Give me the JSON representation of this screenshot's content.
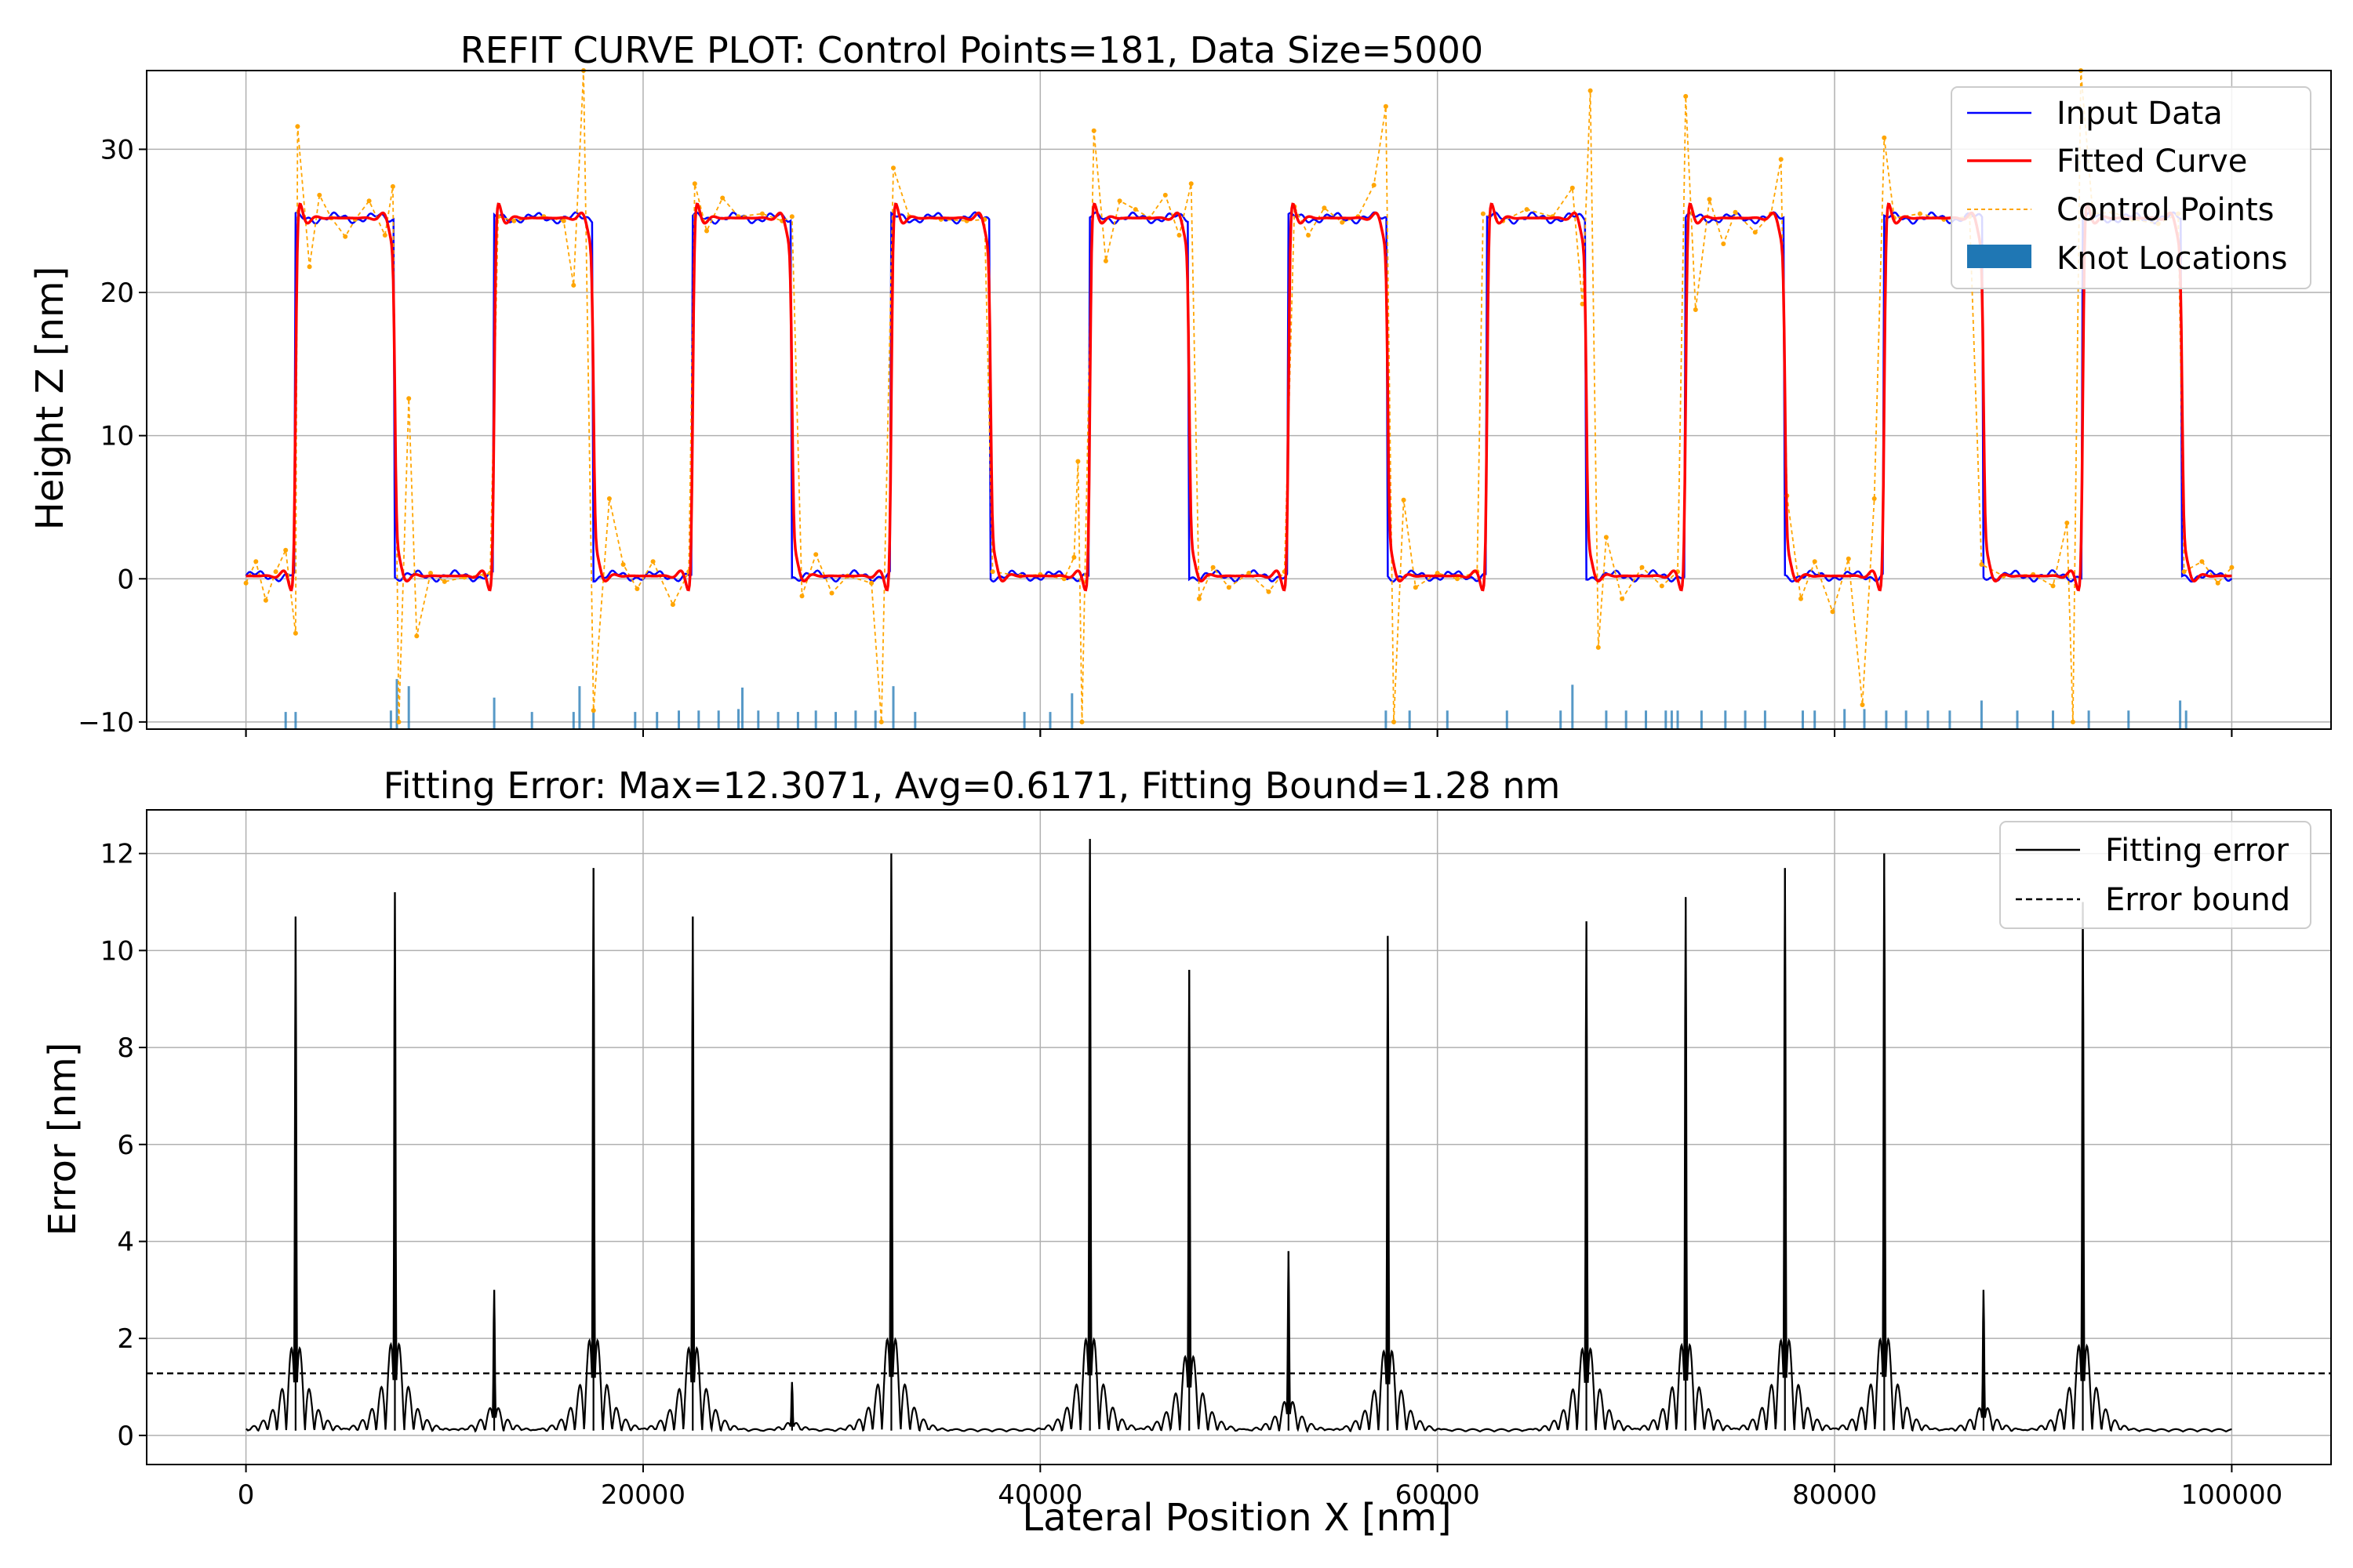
{
  "chart_data": [
    {
      "type": "line",
      "title": "REFIT CURVE PLOT: Control Points=181, Data Size=5000",
      "xlabel": "",
      "ylabel": "Height Z [nm]",
      "xlim": [
        -5000,
        105000
      ],
      "ylim": [
        -10.5,
        35.5
      ],
      "xticks": [
        0,
        20000,
        40000,
        60000,
        80000,
        100000
      ],
      "yticks": [
        -10,
        0,
        10,
        20,
        30
      ],
      "ytick_labels": [
        "−10",
        "0",
        "10",
        "20",
        "30"
      ],
      "grid": true,
      "legend_position": "top-right",
      "colors": {
        "input": "#0000ff",
        "fitted": "#ff0000",
        "control": "#ffa500",
        "knots": "#1f77b4"
      },
      "series": [
        {
          "name": "Input Data",
          "kind": "square-wave",
          "low": 0.2,
          "high": 25.2,
          "rises_at": [
            2500,
            12500,
            22500,
            32500,
            42500,
            52500,
            62500,
            72500,
            82500,
            92500
          ],
          "falls_at": [
            7500,
            17500,
            27500,
            37500,
            47500,
            57500,
            67500,
            77500,
            87500,
            97500
          ],
          "x_range": [
            0,
            100000
          ]
        },
        {
          "name": "Fitted Curve",
          "kind": "smoothed square-wave with ringing",
          "overshoot_points": [
            [
              2800,
              27.6
            ],
            [
              7700,
              -2.5
            ],
            [
              17300,
              26.2
            ],
            [
              17800,
              -2.3
            ],
            [
              32600,
              27.4
            ],
            [
              32000,
              -2.6
            ],
            [
              47700,
              -2.5
            ],
            [
              57400,
              27.2
            ],
            [
              77400,
              27.7
            ],
            [
              82300,
              -2.5
            ],
            [
              92300,
              -2.5
            ]
          ]
        },
        {
          "name": "Control Points",
          "points": [
            [
              0,
              -0.3
            ],
            [
              500,
              1.2
            ],
            [
              1000,
              -1.5
            ],
            [
              1500,
              0.5
            ],
            [
              2000,
              2.0
            ],
            [
              2500,
              -3.8
            ],
            [
              2600,
              31.6
            ],
            [
              3200,
              21.8
            ],
            [
              3700,
              26.8
            ],
            [
              4300,
              25.2
            ],
            [
              5000,
              23.9
            ],
            [
              5500,
              25.1
            ],
            [
              6200,
              26.4
            ],
            [
              7000,
              24.0
            ],
            [
              7400,
              27.4
            ],
            [
              7700,
              -10
            ],
            [
              8200,
              12.6
            ],
            [
              8600,
              -4.0
            ],
            [
              9300,
              0.4
            ],
            [
              10000,
              -0.2
            ],
            [
              11000,
              0.1
            ],
            [
              12000,
              0.3
            ],
            [
              12300,
              0.4
            ],
            [
              12700,
              25.3
            ],
            [
              13500,
              25.0
            ],
            [
              15000,
              25.3
            ],
            [
              16000,
              25.0
            ],
            [
              16500,
              20.5
            ],
            [
              17000,
              35.5
            ],
            [
              17500,
              -9.2
            ],
            [
              18300,
              5.6
            ],
            [
              19000,
              1.0
            ],
            [
              19700,
              -0.7
            ],
            [
              20500,
              1.2
            ],
            [
              21500,
              -1.8
            ],
            [
              22300,
              0.5
            ],
            [
              22600,
              27.6
            ],
            [
              23200,
              24.3
            ],
            [
              24000,
              26.6
            ],
            [
              24800,
              25.3
            ],
            [
              26000,
              25.5
            ],
            [
              27000,
              25.0
            ],
            [
              27500,
              25.3
            ],
            [
              28000,
              -1.2
            ],
            [
              28700,
              1.7
            ],
            [
              29500,
              -1.0
            ],
            [
              30300,
              0.2
            ],
            [
              31500,
              -0.3
            ],
            [
              32000,
              -10
            ],
            [
              32600,
              28.7
            ],
            [
              33400,
              25.3
            ],
            [
              35000,
              25.1
            ],
            [
              36300,
              25.0
            ],
            [
              37200,
              25.1
            ],
            [
              37600,
              0.5
            ],
            [
              39000,
              0.2
            ],
            [
              40000,
              0.3
            ],
            [
              41200,
              0.0
            ],
            [
              41700,
              1.5
            ],
            [
              41900,
              8.2
            ],
            [
              42100,
              -10
            ],
            [
              42700,
              31.3
            ],
            [
              43300,
              22.2
            ],
            [
              44000,
              26.4
            ],
            [
              44800,
              25.8
            ],
            [
              45500,
              25.2
            ],
            [
              46300,
              26.8
            ],
            [
              47000,
              24.0
            ],
            [
              47600,
              27.6
            ],
            [
              48000,
              -1.4
            ],
            [
              48700,
              0.8
            ],
            [
              49500,
              -0.6
            ],
            [
              50500,
              0.4
            ],
            [
              51500,
              -0.9
            ],
            [
              52300,
              0.5
            ],
            [
              52800,
              26.0
            ],
            [
              53500,
              24.0
            ],
            [
              54300,
              25.9
            ],
            [
              55200,
              24.9
            ],
            [
              56000,
              25.3
            ],
            [
              56800,
              27.5
            ],
            [
              57400,
              33.0
            ],
            [
              57800,
              -10
            ],
            [
              58300,
              5.5
            ],
            [
              58900,
              -0.6
            ],
            [
              60000,
              0.4
            ],
            [
              61000,
              0.0
            ],
            [
              62000,
              0.5
            ],
            [
              62300,
              25.5
            ],
            [
              63300,
              25.0
            ],
            [
              64500,
              25.8
            ],
            [
              65800,
              25.3
            ],
            [
              66800,
              27.3
            ],
            [
              67300,
              19.2
            ],
            [
              67700,
              34.1
            ],
            [
              68100,
              -4.8
            ],
            [
              68500,
              2.9
            ],
            [
              69300,
              -1.4
            ],
            [
              70300,
              0.8
            ],
            [
              71300,
              -0.5
            ],
            [
              72100,
              0.5
            ],
            [
              72500,
              33.7
            ],
            [
              73000,
              18.8
            ],
            [
              73700,
              26.5
            ],
            [
              74400,
              23.4
            ],
            [
              75000,
              25.6
            ],
            [
              76000,
              24.2
            ],
            [
              76800,
              25.5
            ],
            [
              77300,
              29.3
            ],
            [
              77600,
              5.8
            ],
            [
              78300,
              -1.4
            ],
            [
              79000,
              1.2
            ],
            [
              79900,
              -2.3
            ],
            [
              80700,
              1.4
            ],
            [
              81400,
              -8.8
            ],
            [
              82000,
              5.6
            ],
            [
              82500,
              30.8
            ],
            [
              83000,
              25.2
            ],
            [
              84300,
              25.5
            ],
            [
              85500,
              25.1
            ],
            [
              86800,
              25.3
            ],
            [
              87400,
              1.0
            ],
            [
              88500,
              0.2
            ],
            [
              90000,
              0.3
            ],
            [
              91000,
              -0.5
            ],
            [
              91700,
              3.9
            ],
            [
              92000,
              -10
            ],
            [
              92400,
              35.5
            ],
            [
              93000,
              25.5
            ],
            [
              94000,
              25.6
            ],
            [
              95000,
              25.1
            ],
            [
              96300,
              24.8
            ],
            [
              97300,
              25.5
            ],
            [
              97600,
              0.5
            ],
            [
              98500,
              1.2
            ],
            [
              99300,
              -0.3
            ],
            [
              100000,
              0.8
            ]
          ]
        },
        {
          "name": "Knot Locations",
          "kind": "histogram-bars",
          "bars": [
            [
              2000,
              1.2
            ],
            [
              2500,
              1.2
            ],
            [
              7300,
              1.3
            ],
            [
              7600,
              3.5
            ],
            [
              8200,
              3.0
            ],
            [
              12500,
              2.2
            ],
            [
              14400,
              1.2
            ],
            [
              16500,
              1.2
            ],
            [
              16800,
              3.0
            ],
            [
              17500,
              1.3
            ],
            [
              19600,
              1.2
            ],
            [
              20700,
              1.2
            ],
            [
              21800,
              1.3
            ],
            [
              22800,
              1.3
            ],
            [
              23800,
              1.3
            ],
            [
              24800,
              1.4
            ],
            [
              25000,
              2.9
            ],
            [
              25800,
              1.3
            ],
            [
              26800,
              1.2
            ],
            [
              27800,
              1.2
            ],
            [
              28700,
              1.3
            ],
            [
              29700,
              1.2
            ],
            [
              30700,
              1.3
            ],
            [
              31700,
              1.3
            ],
            [
              32600,
              3.0
            ],
            [
              33700,
              1.2
            ],
            [
              39200,
              1.2
            ],
            [
              40500,
              1.2
            ],
            [
              41600,
              2.5
            ],
            [
              57400,
              1.3
            ],
            [
              58600,
              1.3
            ],
            [
              60500,
              1.3
            ],
            [
              63500,
              1.3
            ],
            [
              66200,
              1.3
            ],
            [
              66800,
              3.1
            ],
            [
              68500,
              1.3
            ],
            [
              69500,
              1.3
            ],
            [
              70500,
              1.3
            ],
            [
              71500,
              1.3
            ],
            [
              71800,
              1.3
            ],
            [
              72100,
              1.3
            ],
            [
              73300,
              1.3
            ],
            [
              74500,
              1.3
            ],
            [
              75500,
              1.3
            ],
            [
              76500,
              1.3
            ],
            [
              78400,
              1.3
            ],
            [
              79000,
              1.3
            ],
            [
              80500,
              1.4
            ],
            [
              81500,
              1.4
            ],
            [
              82600,
              1.3
            ],
            [
              83600,
              1.3
            ],
            [
              84700,
              1.3
            ],
            [
              85800,
              1.3
            ],
            [
              87400,
              2.0
            ],
            [
              89200,
              1.3
            ],
            [
              91000,
              1.3
            ],
            [
              92800,
              1.3
            ],
            [
              94800,
              1.3
            ],
            [
              97400,
              2.0
            ],
            [
              97700,
              1.3
            ]
          ]
        }
      ]
    },
    {
      "type": "line",
      "title": "Fitting Error: Max=12.3071, Avg=0.6171, Fitting Bound=1.28 nm",
      "xlabel": "Lateral Position X [nm]",
      "ylabel": "Error [nm]",
      "xlim": [
        -5000,
        105000
      ],
      "ylim": [
        -0.6,
        12.9
      ],
      "xticks": [
        0,
        20000,
        40000,
        60000,
        80000,
        100000
      ],
      "yticks": [
        0,
        2,
        4,
        6,
        8,
        10,
        12
      ],
      "grid": true,
      "legend_position": "top-right",
      "series": [
        {
          "name": "Fitting error",
          "spikes": [
            [
              2500,
              10.7
            ],
            [
              7500,
              11.2
            ],
            [
              12500,
              3.0
            ],
            [
              17500,
              11.7
            ],
            [
              22500,
              10.7
            ],
            [
              27500,
              1.1
            ],
            [
              32500,
              12.0
            ],
            [
              42500,
              12.3
            ],
            [
              47500,
              9.6
            ],
            [
              52500,
              3.8
            ],
            [
              57500,
              10.3
            ],
            [
              67500,
              10.6
            ],
            [
              72500,
              11.1
            ],
            [
              77500,
              11.7
            ],
            [
              82500,
              12.0
            ],
            [
              87500,
              3.0
            ],
            [
              92500,
              11.0
            ]
          ]
        },
        {
          "name": "Error bound",
          "value": 1.28
        }
      ]
    }
  ]
}
